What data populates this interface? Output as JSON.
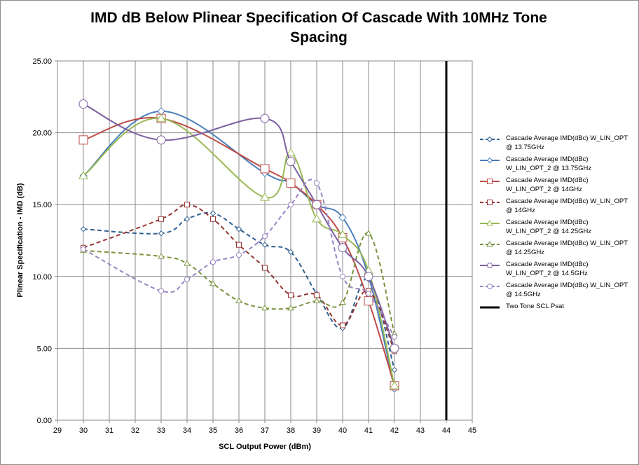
{
  "chart_data": {
    "type": "line",
    "title": "IMD dB Below Plinear Specification Of Cascade With 10MHz Tone Spacing",
    "xlabel": "SCL Output Power (dBm)",
    "ylabel": "Plinear Specification  - IMD (dB)",
    "xlim": [
      29,
      45
    ],
    "ylim": [
      0,
      25
    ],
    "xticks": [
      "29",
      "30",
      "31",
      "32",
      "33",
      "34",
      "35",
      "36",
      "37",
      "38",
      "39",
      "40",
      "41",
      "42",
      "43",
      "44",
      "45"
    ],
    "yticks": [
      "0.00",
      "5.00",
      "10.00",
      "15.00",
      "20.00",
      "25.00"
    ],
    "grid": true,
    "legend_position": "right",
    "series": [
      {
        "name": "Cascade Average IMD(dBc) W_LIN_OPT @ 13.75GHz",
        "color": "#2f5f8f",
        "dash": true,
        "marker": "diamond",
        "x": [
          30,
          33,
          34,
          35,
          36,
          37,
          38,
          39,
          40,
          41,
          42
        ],
        "y": [
          13.3,
          13.0,
          14.0,
          14.4,
          13.3,
          12.2,
          11.7,
          8.8,
          6.4,
          9.8,
          3.5
        ]
      },
      {
        "name": "Cascade Average IMD(dBc) W_LIN_OPT_2 @ 13.75GHz",
        "color": "#4a7ebb",
        "dash": false,
        "marker": "diamond",
        "x": [
          30,
          33,
          37,
          38,
          39,
          40,
          41,
          42
        ],
        "y": [
          17.0,
          21.5,
          17.2,
          16.5,
          15.0,
          14.1,
          10.0,
          2.2
        ]
      },
      {
        "name": "Cascade Average IMD(dBc) W_LIN_OPT_2 @ 14GHz",
        "color": "#be4b48",
        "dash": false,
        "marker": "square",
        "x": [
          30,
          33,
          37,
          38,
          39,
          40,
          41,
          42
        ],
        "y": [
          19.5,
          21.0,
          17.5,
          16.5,
          15.0,
          12.7,
          8.3,
          2.4
        ]
      },
      {
        "name": "Cascade Average IMD(dBc) W_LIN_OPT @ 14GHz",
        "color": "#943634",
        "dash": true,
        "marker": "square",
        "x": [
          30,
          33,
          34,
          35,
          36,
          37,
          38,
          39,
          40,
          41,
          42
        ],
        "y": [
          12.0,
          14.0,
          15.0,
          14.0,
          12.2,
          10.6,
          8.7,
          8.7,
          6.6,
          9.0,
          4.8
        ]
      },
      {
        "name": "Cascade Average IMD(dBc) W_LIN_OPT_2 @ 14.25GHz",
        "color": "#98b954",
        "dash": false,
        "marker": "triangle",
        "x": [
          30,
          33,
          37,
          38,
          39,
          40,
          41,
          42
        ],
        "y": [
          17.0,
          21.0,
          15.5,
          18.6,
          14.0,
          12.9,
          10.4,
          2.4
        ]
      },
      {
        "name": "Cascade Average IMD(dBc) W_LIN_OPT @ 14.25GHz",
        "color": "#77933c",
        "dash": true,
        "marker": "triangle",
        "x": [
          30,
          33,
          34,
          35,
          36,
          37,
          38,
          39,
          40,
          41,
          42
        ],
        "y": [
          11.8,
          11.4,
          10.9,
          9.5,
          8.3,
          7.8,
          7.8,
          8.3,
          8.2,
          13.0,
          6.0
        ]
      },
      {
        "name": "Cascade Average IMD(dBc) W_LIN_OPT_2 @ 14.5GHz",
        "color": "#7d60a0",
        "dash": false,
        "marker": "circle",
        "x": [
          30,
          33,
          37,
          38,
          39,
          40,
          41,
          42
        ],
        "y": [
          22.0,
          19.5,
          21.0,
          18.0,
          15.0,
          12.0,
          10.0,
          5.0
        ]
      },
      {
        "name": "Cascade Average IMD(dBc) W_LIN_OPT @ 14.5GHz",
        "color": "#9983c2",
        "dash": true,
        "marker": "circle",
        "x": [
          30,
          33,
          34,
          35,
          36,
          37,
          38,
          39,
          40,
          41,
          42
        ],
        "y": [
          11.9,
          9.0,
          9.8,
          11.0,
          11.5,
          12.8,
          15.0,
          16.5,
          10.0,
          8.8,
          5.8
        ]
      },
      {
        "name": "Two Tone SCL Psat",
        "color": "#000000",
        "dash": false,
        "marker": "none",
        "vline": true,
        "x": [
          44,
          44
        ],
        "y": [
          0,
          25
        ]
      }
    ]
  }
}
